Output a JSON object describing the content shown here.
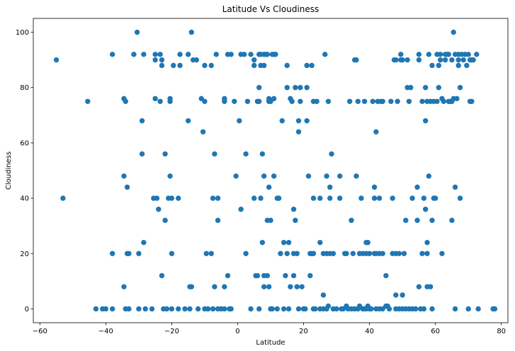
{
  "chart_data": {
    "type": "scatter",
    "title": "Latitude Vs Cloudiness",
    "xlabel": "Latitude",
    "ylabel": "Cloudiness",
    "xlim": [
      -62,
      82
    ],
    "ylim": [
      -5,
      105
    ],
    "xticks": [
      -60,
      -40,
      -20,
      0,
      20,
      40,
      60,
      80
    ],
    "yticks": [
      0,
      20,
      40,
      60,
      80,
      100
    ],
    "grid": false,
    "marker_color": "#1f77b4",
    "points": [
      [
        -55,
        90
      ],
      [
        -53,
        40
      ],
      [
        -45.5,
        75
      ],
      [
        -43,
        0
      ],
      [
        -41,
        0
      ],
      [
        -40,
        0
      ],
      [
        -38,
        92
      ],
      [
        -38,
        20
      ],
      [
        -38,
        0
      ],
      [
        -34.5,
        76
      ],
      [
        -34.5,
        48
      ],
      [
        -34.5,
        8
      ],
      [
        -34,
        75
      ],
      [
        -34,
        0
      ],
      [
        -33.5,
        20
      ],
      [
        -33.5,
        44
      ],
      [
        -33,
        20
      ],
      [
        -33,
        0
      ],
      [
        -31.5,
        92
      ],
      [
        -30.5,
        100
      ],
      [
        -30,
        20
      ],
      [
        -30,
        0
      ],
      [
        -29,
        56
      ],
      [
        -29,
        68
      ],
      [
        -28.5,
        92
      ],
      [
        -28.5,
        24
      ],
      [
        -28,
        0
      ],
      [
        -26,
        0
      ],
      [
        -25.5,
        40
      ],
      [
        -25,
        92
      ],
      [
        -25,
        76
      ],
      [
        -25,
        90
      ],
      [
        -24.5,
        40
      ],
      [
        -24,
        36
      ],
      [
        -23.5,
        92
      ],
      [
        -23.5,
        75
      ],
      [
        -23,
        90
      ],
      [
        -23,
        12
      ],
      [
        -23,
        88
      ],
      [
        -22.5,
        0
      ],
      [
        -22,
        32
      ],
      [
        -22,
        56
      ],
      [
        -21.5,
        0
      ],
      [
        -21,
        40
      ],
      [
        -20.5,
        75
      ],
      [
        -20.5,
        48
      ],
      [
        -20.5,
        76
      ],
      [
        -20,
        20
      ],
      [
        -20,
        40
      ],
      [
        -20,
        0
      ],
      [
        -19.5,
        88
      ],
      [
        -18,
        40
      ],
      [
        -18,
        0
      ],
      [
        -17.5,
        92
      ],
      [
        -17.5,
        88
      ],
      [
        -16,
        0
      ],
      [
        -15,
        92
      ],
      [
        -15,
        68
      ],
      [
        -14.5,
        8
      ],
      [
        -14.5,
        0
      ],
      [
        -14,
        8
      ],
      [
        -14,
        100
      ],
      [
        -13.5,
        90
      ],
      [
        -12.5,
        90
      ],
      [
        -12,
        0
      ],
      [
        -11,
        76
      ],
      [
        -10.5,
        64
      ],
      [
        -10,
        75
      ],
      [
        -10,
        0
      ],
      [
        -10,
        88
      ],
      [
        -9.5,
        20
      ],
      [
        -9,
        0
      ],
      [
        -8,
        20
      ],
      [
        -8,
        88
      ],
      [
        -7.5,
        0
      ],
      [
        -7.5,
        40
      ],
      [
        -7,
        56
      ],
      [
        -7,
        8
      ],
      [
        -6.5,
        92
      ],
      [
        -6,
        40
      ],
      [
        -6,
        32
      ],
      [
        -6,
        0
      ],
      [
        -5,
        0
      ],
      [
        -4,
        8
      ],
      [
        -4,
        75
      ],
      [
        -4,
        76
      ],
      [
        -4,
        0
      ],
      [
        -3,
        12
      ],
      [
        -3,
        92
      ],
      [
        -2.5,
        0
      ],
      [
        -2,
        92
      ],
      [
        -2,
        0
      ],
      [
        -1,
        75
      ],
      [
        -0.5,
        48
      ],
      [
        0.5,
        68
      ],
      [
        1,
        36
      ],
      [
        1,
        92
      ],
      [
        2,
        92
      ],
      [
        2.5,
        56
      ],
      [
        2.5,
        20
      ],
      [
        3,
        75
      ],
      [
        4,
        0
      ],
      [
        4,
        92
      ],
      [
        5,
        40
      ],
      [
        5,
        90
      ],
      [
        5,
        88
      ],
      [
        5.5,
        12
      ],
      [
        6,
        12
      ],
      [
        6,
        75
      ],
      [
        6.5,
        75
      ],
      [
        6.5,
        80
      ],
      [
        6.5,
        92
      ],
      [
        6.5,
        0
      ],
      [
        7,
        88
      ],
      [
        7,
        92
      ],
      [
        7,
        40
      ],
      [
        7.5,
        56
      ],
      [
        7.5,
        24
      ],
      [
        8,
        8
      ],
      [
        8,
        12
      ],
      [
        8,
        48
      ],
      [
        8,
        92
      ],
      [
        8,
        88
      ],
      [
        8.5,
        92
      ],
      [
        9,
        32
      ],
      [
        9,
        12
      ],
      [
        9,
        92
      ],
      [
        9.5,
        8
      ],
      [
        9.5,
        75
      ],
      [
        9.5,
        44
      ],
      [
        9.5,
        76
      ],
      [
        10,
        0
      ],
      [
        10,
        75
      ],
      [
        10,
        32
      ],
      [
        10.5,
        92
      ],
      [
        10.5,
        0
      ],
      [
        11,
        92
      ],
      [
        11,
        48
      ],
      [
        11,
        76
      ],
      [
        11.5,
        92
      ],
      [
        12,
        40
      ],
      [
        12,
        0
      ],
      [
        12.5,
        40
      ],
      [
        13,
        20
      ],
      [
        13.5,
        68
      ],
      [
        14,
        0
      ],
      [
        14,
        24
      ],
      [
        14.5,
        12
      ],
      [
        15,
        20
      ],
      [
        15,
        80
      ],
      [
        15,
        88
      ],
      [
        15.5,
        24
      ],
      [
        15.5,
        0
      ],
      [
        16,
        76
      ],
      [
        16,
        8
      ],
      [
        16.5,
        75
      ],
      [
        17,
        20
      ],
      [
        17,
        36
      ],
      [
        17,
        12
      ],
      [
        17.5,
        80
      ],
      [
        17.5,
        32
      ],
      [
        18,
        20
      ],
      [
        18,
        8
      ],
      [
        18.5,
        64
      ],
      [
        18.5,
        68
      ],
      [
        18.5,
        0
      ],
      [
        19,
        80
      ],
      [
        19,
        75
      ],
      [
        19.5,
        8
      ],
      [
        20,
        0
      ],
      [
        20.5,
        0
      ],
      [
        21,
        68
      ],
      [
        21,
        80
      ],
      [
        21,
        88
      ],
      [
        21.5,
        48
      ],
      [
        22,
        20
      ],
      [
        22,
        12
      ],
      [
        22.5,
        20
      ],
      [
        22.5,
        88
      ],
      [
        23,
        75
      ],
      [
        23,
        40
      ],
      [
        23,
        20
      ],
      [
        23,
        0
      ],
      [
        23.5,
        0
      ],
      [
        24,
        75
      ],
      [
        25,
        24
      ],
      [
        25,
        40
      ],
      [
        25,
        0
      ],
      [
        26,
        20
      ],
      [
        26,
        0
      ],
      [
        26,
        5
      ],
      [
        26.5,
        92
      ],
      [
        27,
        48
      ],
      [
        27,
        20
      ],
      [
        27,
        0
      ],
      [
        27.5,
        75
      ],
      [
        27.5,
        1
      ],
      [
        28,
        40
      ],
      [
        28,
        44
      ],
      [
        28,
        20
      ],
      [
        28.5,
        56
      ],
      [
        29,
        0
      ],
      [
        29,
        20
      ],
      [
        30,
        0
      ],
      [
        31,
        48
      ],
      [
        31,
        40
      ],
      [
        31.5,
        0
      ],
      [
        32,
        0
      ],
      [
        32.5,
        20
      ],
      [
        33,
        1
      ],
      [
        33,
        20
      ],
      [
        33.5,
        0
      ],
      [
        34,
        75
      ],
      [
        34.5,
        0
      ],
      [
        34.5,
        32
      ],
      [
        35,
        20
      ],
      [
        35.5,
        0
      ],
      [
        35.5,
        90
      ],
      [
        36,
        48
      ],
      [
        36,
        90
      ],
      [
        36.5,
        75
      ],
      [
        36.5,
        0
      ],
      [
        37,
        20
      ],
      [
        37,
        1
      ],
      [
        37.5,
        40
      ],
      [
        38,
        0
      ],
      [
        38,
        20
      ],
      [
        38.5,
        0
      ],
      [
        38.5,
        75
      ],
      [
        39,
        20
      ],
      [
        39,
        24
      ],
      [
        39,
        0
      ],
      [
        39.5,
        1
      ],
      [
        39.5,
        24
      ],
      [
        40,
        20
      ],
      [
        40,
        0
      ],
      [
        40.5,
        0
      ],
      [
        41,
        75
      ],
      [
        41.5,
        20
      ],
      [
        41.5,
        44
      ],
      [
        41.5,
        40
      ],
      [
        42,
        0
      ],
      [
        42,
        64
      ],
      [
        42,
        20
      ],
      [
        42.5,
        75
      ],
      [
        43,
        20
      ],
      [
        43,
        40
      ],
      [
        43,
        0
      ],
      [
        43.5,
        75
      ],
      [
        44,
        20
      ],
      [
        44,
        0
      ],
      [
        44,
        75
      ],
      [
        45,
        1
      ],
      [
        45,
        12
      ],
      [
        45.5,
        1
      ],
      [
        46,
        0
      ],
      [
        46.5,
        75
      ],
      [
        47,
        20
      ],
      [
        47,
        40
      ],
      [
        47.5,
        90
      ],
      [
        48,
        0
      ],
      [
        48,
        20
      ],
      [
        48,
        5
      ],
      [
        48,
        90
      ],
      [
        48.5,
        75
      ],
      [
        49,
        0
      ],
      [
        49,
        20
      ],
      [
        49.5,
        90
      ],
      [
        49.5,
        92
      ],
      [
        50,
        90
      ],
      [
        50,
        5
      ],
      [
        50,
        0
      ],
      [
        50.5,
        20
      ],
      [
        51,
        32
      ],
      [
        51,
        0
      ],
      [
        51.5,
        90
      ],
      [
        51.5,
        80
      ],
      [
        52,
        75
      ],
      [
        52,
        0
      ],
      [
        52.5,
        80
      ],
      [
        53,
        40
      ],
      [
        53,
        0
      ],
      [
        54,
        0
      ],
      [
        54.5,
        44
      ],
      [
        54.5,
        32
      ],
      [
        55,
        92
      ],
      [
        55,
        90
      ],
      [
        55,
        8
      ],
      [
        55.5,
        0
      ],
      [
        56,
        75
      ],
      [
        56,
        20
      ],
      [
        56.5,
        40
      ],
      [
        56.5,
        0
      ],
      [
        57,
        36
      ],
      [
        57,
        68
      ],
      [
        57,
        80
      ],
      [
        57.5,
        75
      ],
      [
        57.5,
        8
      ],
      [
        57.5,
        20
      ],
      [
        57.5,
        24
      ],
      [
        58,
        92
      ],
      [
        58,
        48
      ],
      [
        58.5,
        75
      ],
      [
        58.5,
        8
      ],
      [
        59,
        88
      ],
      [
        59,
        32
      ],
      [
        59,
        0
      ],
      [
        59.5,
        75
      ],
      [
        59.5,
        40
      ],
      [
        60,
        40
      ],
      [
        60.5,
        92
      ],
      [
        60.5,
        75
      ],
      [
        61,
        80
      ],
      [
        61,
        88
      ],
      [
        61.5,
        90
      ],
      [
        61.5,
        92
      ],
      [
        62,
        20
      ],
      [
        62,
        76
      ],
      [
        62.5,
        75
      ],
      [
        63,
        92
      ],
      [
        63,
        90
      ],
      [
        63.5,
        92
      ],
      [
        64,
        75
      ],
      [
        64,
        92
      ],
      [
        64.5,
        75
      ],
      [
        65,
        90
      ],
      [
        65,
        32
      ],
      [
        65,
        75
      ],
      [
        65.5,
        100
      ],
      [
        65.5,
        76
      ],
      [
        66,
        92
      ],
      [
        66,
        44
      ],
      [
        66,
        0
      ],
      [
        66.5,
        76
      ],
      [
        67,
        90
      ],
      [
        67,
        88
      ],
      [
        67,
        92
      ],
      [
        67.5,
        80
      ],
      [
        67.5,
        40
      ],
      [
        68,
        92
      ],
      [
        68.5,
        90
      ],
      [
        69,
        92
      ],
      [
        69.5,
        88
      ],
      [
        70,
        92
      ],
      [
        70,
        0
      ],
      [
        70.5,
        75
      ],
      [
        70.5,
        90
      ],
      [
        71,
        90
      ],
      [
        71,
        75
      ],
      [
        71.5,
        90
      ],
      [
        72.5,
        92
      ],
      [
        73,
        0
      ],
      [
        77.5,
        0
      ],
      [
        78,
        0
      ]
    ]
  }
}
